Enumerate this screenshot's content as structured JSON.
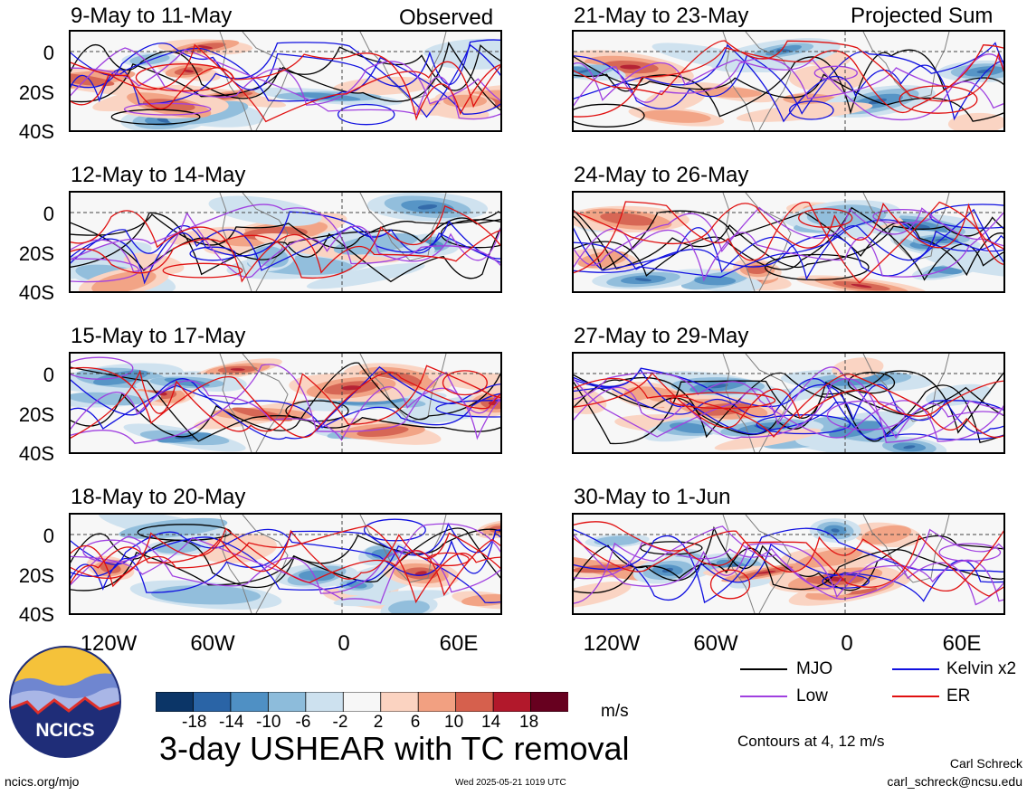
{
  "header": {
    "observed_label": "Observed",
    "projected_label": "Projected Sum"
  },
  "panels": [
    {
      "date": "9-May to 11-May"
    },
    {
      "date": "12-May to 14-May"
    },
    {
      "date": "15-May to 17-May"
    },
    {
      "date": "18-May to 20-May"
    },
    {
      "date": "21-May to 23-May"
    },
    {
      "date": "24-May to 26-May"
    },
    {
      "date": "27-May to 29-May"
    },
    {
      "date": "30-May to 1-Jun"
    }
  ],
  "axes": {
    "y_ticks": [
      "0",
      "20S",
      "40S"
    ],
    "x_ticks": [
      "120W",
      "60W",
      "0",
      "60E"
    ]
  },
  "colorbar": {
    "tick_labels": [
      "-18",
      "-14",
      "-10",
      "-6",
      "-2",
      "2",
      "6",
      "10",
      "14",
      "18"
    ],
    "colors": [
      "#0b3567",
      "#2a64a6",
      "#4f90c4",
      "#8dbcdb",
      "#cde1ef",
      "#f7f7f7",
      "#fbd3c1",
      "#f2a081",
      "#d6604d",
      "#b2182b",
      "#67001f"
    ],
    "units": "m/s"
  },
  "title": "3-day USHEAR with TC removal",
  "legend": {
    "items": [
      {
        "label": "MJO",
        "color": "#000000"
      },
      {
        "label": "Kelvin x2",
        "color": "#1010e0"
      },
      {
        "label": "Low",
        "color": "#a040e0"
      },
      {
        "label": "ER",
        "color": "#e01010"
      }
    ],
    "contours_note": "Contours at 4, 12 m/s"
  },
  "footer": {
    "url": "ncics.org/mjo",
    "timestamp": "Wed 2025-05-21 1019 UTC",
    "author": "Carl Schreck",
    "email": "carl_schreck@ncsu.edu"
  },
  "logo": {
    "text": "NCICS"
  }
}
